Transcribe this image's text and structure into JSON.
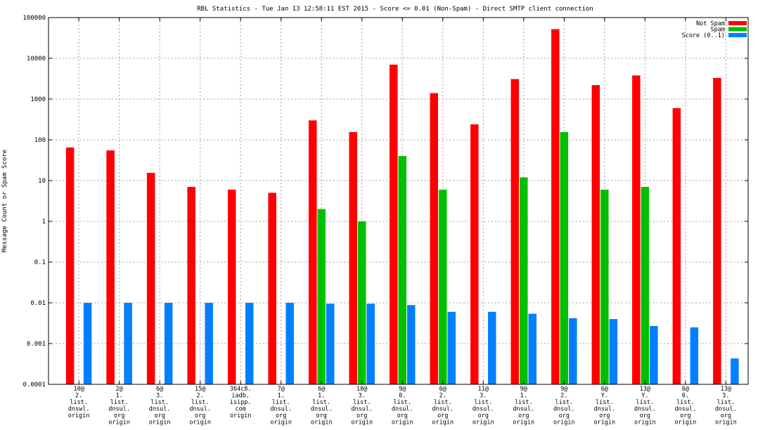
{
  "chart_data": {
    "type": "bar",
    "title": "RBL Statistics - Tue Jan 13 12:58:11 EST 2015 - Score <= 0.01 (Non-Spam) - Direct SMTP client connection",
    "ylabel": "Message Count or Spam Score",
    "xlabel": "",
    "yscale": "log",
    "ylim": [
      0.0001,
      100000
    ],
    "ytick_labels": [
      "0.0001",
      "0.001",
      "0.01",
      "0.1",
      "1",
      "10",
      "100",
      "1000",
      "10000",
      "100000"
    ],
    "grid": true,
    "legend_position": "top-right",
    "categories": [
      [
        "10@",
        "2.",
        "list.",
        "dnswl.",
        "origin"
      ],
      [
        "2@",
        "1.",
        "list.",
        "dnsul.",
        "org",
        "origin"
      ],
      [
        "6@",
        "3.",
        "list.",
        "dnsul.",
        "org",
        "origin"
      ],
      [
        "15@",
        "2.",
        "list.",
        "dnsul.",
        "org",
        "origin"
      ],
      [
        "364c8.",
        "iadb.",
        "isipp.",
        "com",
        "origin"
      ],
      [
        "7@",
        "1.",
        "list.",
        "dnsul.",
        "org",
        "origin"
      ],
      [
        "6@",
        "1.",
        "list.",
        "dnsul.",
        "org",
        "origin"
      ],
      [
        "10@",
        "3.",
        "list.",
        "dnsul.",
        "org",
        "origin"
      ],
      [
        "9@",
        "0.",
        "list.",
        "dnsul.",
        "org",
        "origin"
      ],
      [
        "6@",
        "2.",
        "list.",
        "dnsul.",
        "org",
        "origin"
      ],
      [
        "11@",
        "3.",
        "list.",
        "dnsul.",
        "org",
        "origin"
      ],
      [
        "9@",
        "1.",
        "list.",
        "dnsul.",
        "org",
        "origin"
      ],
      [
        "9@",
        "2.",
        "list.",
        "dnsul.",
        "org",
        "origin"
      ],
      [
        "6@",
        "Y.",
        "list.",
        "dnsul.",
        "org",
        "origin"
      ],
      [
        "13@",
        "Y.",
        "list.",
        "dnsul.",
        "org",
        "origin"
      ],
      [
        "6@",
        "0.",
        "list.",
        "dnsul.",
        "org",
        "origin"
      ],
      [
        "13@",
        "3.",
        "list.",
        "dnsul.",
        "org",
        "origin"
      ]
    ],
    "series": [
      {
        "name": "Not Spam",
        "color": "#ff0000",
        "values": [
          65,
          55,
          15.5,
          7,
          6,
          5,
          300,
          155,
          7000,
          1400,
          240,
          3100,
          52000,
          2200,
          3800,
          600,
          3300
        ]
      },
      {
        "name": "Spam",
        "color": "#00c000",
        "values": [
          null,
          null,
          null,
          null,
          null,
          null,
          2,
          1,
          40,
          6,
          null,
          12,
          155,
          6,
          7,
          null,
          null
        ]
      },
      {
        "name": "Score (0..1)",
        "color": "#0080ff",
        "values": [
          0.01,
          0.01,
          0.01,
          0.01,
          0.01,
          0.01,
          0.0095,
          0.0095,
          0.0088,
          0.006,
          0.006,
          0.0054,
          0.0042,
          0.004,
          0.0027,
          0.0025,
          0.00043
        ]
      }
    ]
  }
}
